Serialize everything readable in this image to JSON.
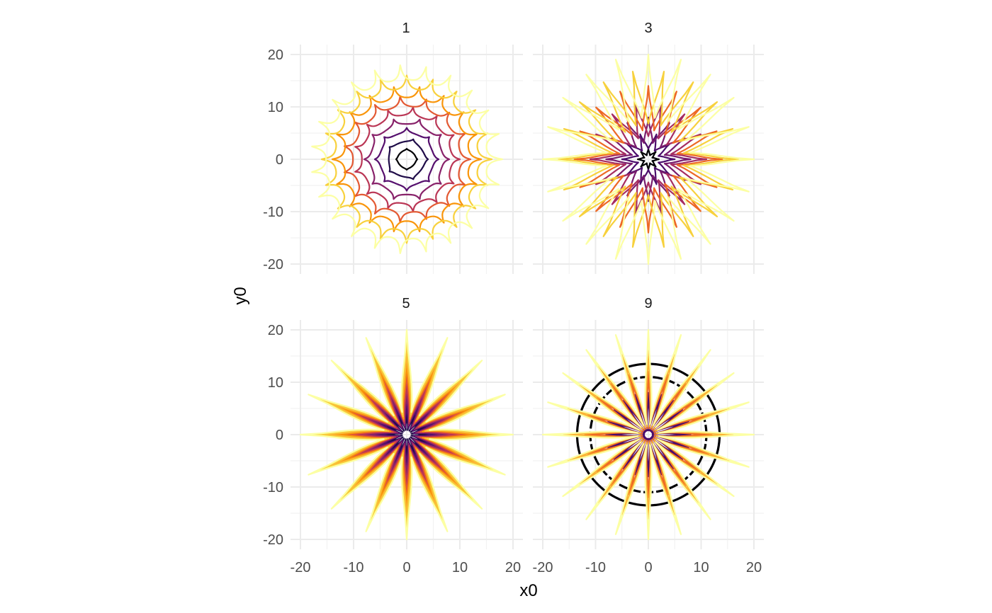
{
  "chart_data": [
    {
      "type": "line",
      "title": "1",
      "layers": [
        {
          "radius": 2,
          "color": "#000004"
        },
        {
          "radius": 4,
          "color": "#1f0c48"
        },
        {
          "radius": 6,
          "color": "#550f6d"
        },
        {
          "radius": 8,
          "color": "#88226a"
        },
        {
          "radius": 10,
          "color": "#ba3655"
        },
        {
          "radius": 12,
          "color": "#e35933"
        },
        {
          "radius": 14,
          "color": "#f9950a"
        },
        {
          "radius": 16,
          "color": "#f8d13d"
        },
        {
          "radius": 18,
          "color": "#fcffa4"
        }
      ],
      "xlim": [
        -20,
        20
      ],
      "ylim": [
        -20,
        20
      ],
      "xticks": [
        "-20",
        "-10",
        "0",
        "10",
        "20"
      ],
      "yticks": [
        "-20",
        "-10",
        "0",
        "10",
        "20"
      ]
    },
    {
      "type": "line",
      "title": "3",
      "layers": [
        {
          "radius": 2,
          "color": "#000004"
        },
        {
          "radius": 5,
          "color": "#4a0c6b"
        },
        {
          "radius": 8,
          "color": "#781c6d"
        },
        {
          "radius": 11,
          "color": "#a52c60"
        },
        {
          "radius": 14,
          "color": "#ed6925"
        },
        {
          "radius": 17,
          "color": "#f7d13d"
        },
        {
          "radius": 20,
          "color": "#fcffa4"
        }
      ],
      "xlim": [
        -20,
        20
      ],
      "ylim": [
        -20,
        20
      ],
      "xticks": [
        "-20",
        "-10",
        "0",
        "10",
        "20"
      ],
      "yticks": [
        "-20",
        "-10",
        "0",
        "10",
        "20"
      ]
    },
    {
      "type": "line",
      "title": "5",
      "layers": [
        {
          "radius": 4,
          "color": "#1f0c48"
        },
        {
          "radius": 6,
          "color": "#550f6d"
        },
        {
          "radius": 8,
          "color": "#88226a"
        },
        {
          "radius": 10,
          "color": "#ba3655"
        },
        {
          "radius": 12,
          "color": "#e35933"
        },
        {
          "radius": 14,
          "color": "#f9950a"
        },
        {
          "radius": 16,
          "color": "#fbb535"
        },
        {
          "radius": 18,
          "color": "#f8d13d"
        },
        {
          "radius": 20,
          "color": "#fcffa4"
        }
      ],
      "xlim": [
        -20,
        20
      ],
      "ylim": [
        -20,
        20
      ],
      "xticks": [
        "-20",
        "-10",
        "0",
        "10",
        "20"
      ],
      "yticks": [
        "-20",
        "-10",
        "0",
        "10",
        "20"
      ]
    },
    {
      "type": "line",
      "title": "9",
      "layers": [
        {
          "radius": 13.5,
          "color": "#000004",
          "shape": "circle"
        },
        {
          "radius": 11,
          "color": "#000004",
          "shape": "circle"
        },
        {
          "radius": 8,
          "color": "#4a0c6b"
        },
        {
          "radius": 12,
          "color": "#ed6925"
        },
        {
          "radius": 16,
          "color": "#fbb535"
        },
        {
          "radius": 20,
          "color": "#fcffa4"
        }
      ],
      "xlim": [
        -20,
        20
      ],
      "ylim": [
        -20,
        20
      ],
      "xticks": [
        "-20",
        "-10",
        "0",
        "10",
        "20"
      ],
      "yticks": [
        "-20",
        "-10",
        "0",
        "10",
        "20"
      ]
    }
  ],
  "axes": {
    "xlabel": "x0",
    "ylabel": "y0"
  },
  "colors": {
    "grid_major": "#ebebeb",
    "grid_minor": "#f2f2f2",
    "background": "#ffffff"
  }
}
